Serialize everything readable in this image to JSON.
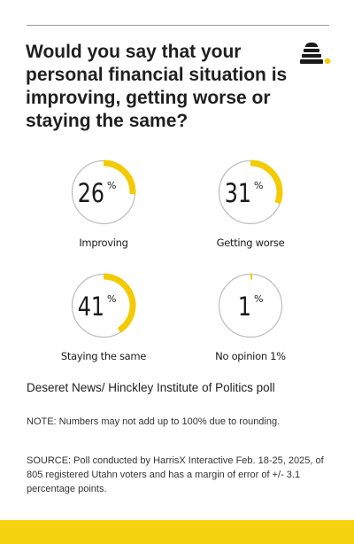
{
  "title": "Would you say that your personal financial situation is improving, getting worse or staying the same?",
  "colors": {
    "accent": "#f2cb05",
    "ring": "#bdbdbd",
    "text": "#1a1a1a",
    "bottom_bar": "#f5d20f"
  },
  "logo_icon": "beehive-icon",
  "chart_data": {
    "type": "pie",
    "unit": "%",
    "categories": [
      "Improving",
      "Getting worse",
      "Staying the same",
      "No opinion 1%"
    ],
    "values": [
      26,
      31,
      41,
      1
    ]
  },
  "credit": "Deseret News/ Hinckley Institute of Politics poll",
  "note": "NOTE: Numbers may not add up to 100% due to rounding.",
  "source": "SOURCE: Poll conducted by HarrisX Interactive Feb. 18-25, 2025, of 805 registered Utahn voters and has a margin of error of +/- 3.1 percentage points."
}
